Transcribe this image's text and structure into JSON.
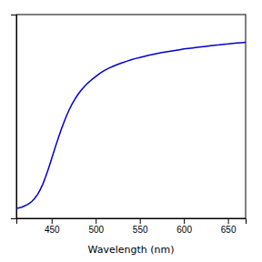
{
  "chart_data": {
    "type": "line",
    "xlabel": "Wavelength (nm)",
    "color": "#0000CC",
    "x": [
      410,
      413,
      416,
      419,
      422,
      425,
      428,
      431,
      434,
      437,
      440,
      443,
      446,
      449,
      452,
      455,
      458,
      461,
      464,
      467,
      470,
      473,
      476,
      479,
      482,
      485,
      488,
      491,
      494,
      497,
      500,
      505,
      510,
      515,
      520,
      525,
      530,
      535,
      540,
      545,
      550,
      555,
      560,
      565,
      570,
      575,
      580,
      585,
      590,
      595,
      600,
      605,
      610,
      615,
      620,
      625,
      630,
      635,
      640,
      645,
      650,
      655,
      660,
      665,
      670
    ],
    "values": [
      0.005,
      0.008,
      0.012,
      0.018,
      0.025,
      0.034,
      0.046,
      0.062,
      0.082,
      0.108,
      0.14,
      0.178,
      0.22,
      0.265,
      0.312,
      0.358,
      0.402,
      0.444,
      0.483,
      0.52,
      0.553,
      0.582,
      0.608,
      0.631,
      0.651,
      0.669,
      0.685,
      0.7,
      0.713,
      0.725,
      0.736,
      0.755,
      0.77,
      0.783,
      0.794,
      0.804,
      0.813,
      0.821,
      0.829,
      0.836,
      0.842,
      0.848,
      0.854,
      0.859,
      0.864,
      0.869,
      0.873,
      0.877,
      0.881,
      0.885,
      0.889,
      0.892,
      0.895,
      0.898,
      0.901,
      0.904,
      0.907,
      0.91,
      0.912,
      0.915,
      0.917,
      0.92,
      0.922,
      0.924,
      0.926
    ],
    "xlim": [
      410,
      670
    ],
    "ylim": [
      -0.05,
      1.08
    ],
    "xticks": [
      450,
      500,
      550,
      600,
      650
    ],
    "yticks": [],
    "tick_labels": "x",
    "grid": false
  }
}
